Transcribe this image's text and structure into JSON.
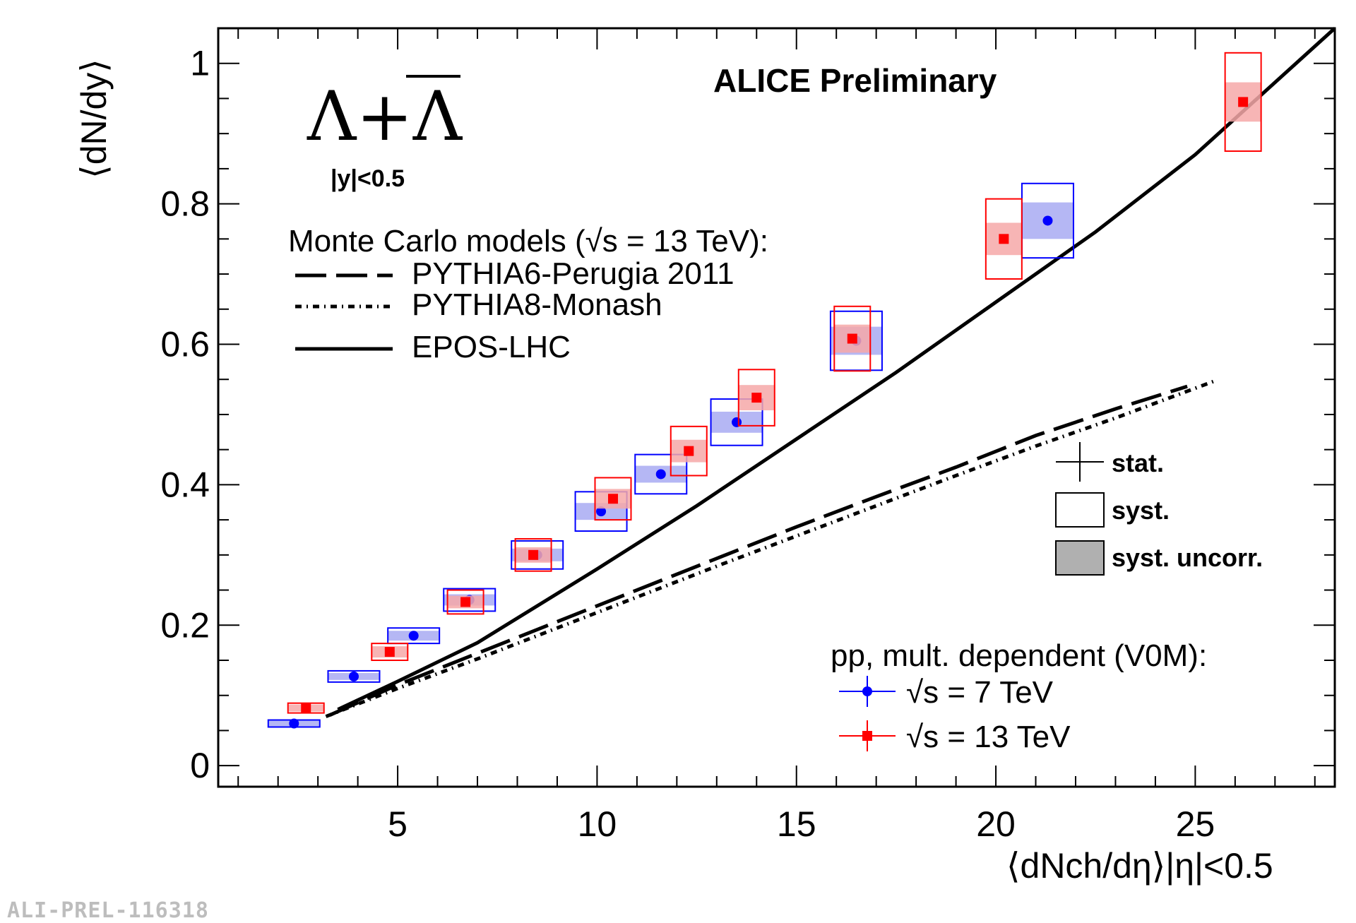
{
  "watermark": "ALI-PREL-116318",
  "chart_data": {
    "type": "scatter",
    "title": "ALICE Preliminary",
    "particle_label": "Λ+Λ",
    "rapidity_label": "|y|<0.5",
    "ylabel": "⟨dN/dy⟩",
    "xlabel": "⟨dNch/dη⟩|η|<0.5",
    "xlim": [
      0.5,
      28.5
    ],
    "ylim": [
      -0.03,
      1.05
    ],
    "x_ticks": [
      5,
      10,
      15,
      20,
      25
    ],
    "y_ticks": [
      0,
      0.2,
      0.4,
      0.6,
      0.8,
      1
    ],
    "grid": false,
    "mc_legend_title": "Monte Carlo models (√s = 13 TeV):",
    "error_legend": {
      "stat": "stat.",
      "syst": "syst.",
      "syst_uncorr": "syst. uncorr."
    },
    "data_legend_title": "pp, mult. dependent (V0M):",
    "series": [
      {
        "name": "√s = 7 TeV",
        "color": "#0000ff",
        "marker": "circle",
        "points": [
          {
            "x": 2.4,
            "y": 0.06,
            "sys": 0.005,
            "unc": 0.004
          },
          {
            "x": 3.9,
            "y": 0.127,
            "sys": 0.008,
            "unc": 0.005
          },
          {
            "x": 5.4,
            "y": 0.185,
            "sys": 0.011,
            "unc": 0.007
          },
          {
            "x": 6.8,
            "y": 0.236,
            "sys": 0.016,
            "unc": 0.008
          },
          {
            "x": 8.5,
            "y": 0.3,
            "sys": 0.02,
            "unc": 0.009
          },
          {
            "x": 10.1,
            "y": 0.362,
            "sys": 0.028,
            "unc": 0.012
          },
          {
            "x": 11.6,
            "y": 0.415,
            "sys": 0.028,
            "unc": 0.012
          },
          {
            "x": 13.5,
            "y": 0.489,
            "sys": 0.033,
            "unc": 0.015
          },
          {
            "x": 16.5,
            "y": 0.605,
            "sys": 0.042,
            "unc": 0.02
          },
          {
            "x": 21.3,
            "y": 0.776,
            "sys": 0.053,
            "unc": 0.026
          }
        ]
      },
      {
        "name": "√s = 13 TeV",
        "color": "#ff0000",
        "marker": "square",
        "points": [
          {
            "x": 2.7,
            "y": 0.082,
            "sys": 0.007,
            "unc": 0.005
          },
          {
            "x": 4.8,
            "y": 0.162,
            "sys": 0.012,
            "unc": 0.008
          },
          {
            "x": 6.7,
            "y": 0.233,
            "sys": 0.017,
            "unc": 0.009
          },
          {
            "x": 8.4,
            "y": 0.3,
            "sys": 0.023,
            "unc": 0.011
          },
          {
            "x": 10.4,
            "y": 0.38,
            "sys": 0.03,
            "unc": 0.014
          },
          {
            "x": 12.3,
            "y": 0.448,
            "sys": 0.035,
            "unc": 0.016
          },
          {
            "x": 14.0,
            "y": 0.524,
            "sys": 0.04,
            "unc": 0.018
          },
          {
            "x": 16.4,
            "y": 0.608,
            "sys": 0.046,
            "unc": 0.02
          },
          {
            "x": 20.2,
            "y": 0.75,
            "sys": 0.057,
            "unc": 0.023
          },
          {
            "x": 26.2,
            "y": 0.945,
            "sys": 0.07,
            "unc": 0.028
          }
        ]
      }
    ],
    "models": [
      {
        "name": "PYTHIA6-Perugia 2011",
        "style": "dashed",
        "x": [
          3.3,
          5.0,
          7.0,
          9.0,
          11.0,
          13.0,
          15.0,
          17.0,
          19.0,
          21.0,
          23.0,
          24.8
        ],
        "y": [
          0.072,
          0.115,
          0.16,
          0.205,
          0.25,
          0.295,
          0.34,
          0.383,
          0.425,
          0.47,
          0.508,
          0.54
        ]
      },
      {
        "name": "PYTHIA8-Monash",
        "style": "dotted",
        "x": [
          3.2,
          5.0,
          7.0,
          9.0,
          11.0,
          13.0,
          15.0,
          17.0,
          19.0,
          21.0,
          23.0,
          25.5
        ],
        "y": [
          0.07,
          0.11,
          0.152,
          0.196,
          0.24,
          0.284,
          0.327,
          0.37,
          0.413,
          0.455,
          0.495,
          0.548
        ]
      },
      {
        "name": "EPOS-LHC",
        "style": "solid",
        "x": [
          3.5,
          5.0,
          7.0,
          10.0,
          12.5,
          15.0,
          17.5,
          20.0,
          22.5,
          25.0,
          28.5
        ],
        "y": [
          0.08,
          0.12,
          0.175,
          0.28,
          0.37,
          0.465,
          0.56,
          0.66,
          0.76,
          0.87,
          1.05
        ]
      }
    ]
  }
}
